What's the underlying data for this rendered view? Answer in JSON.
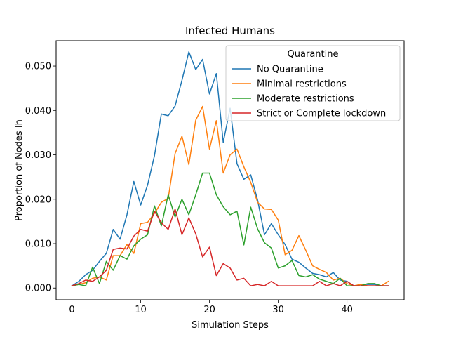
{
  "chart_data": {
    "type": "line",
    "title": "Infected Humans",
    "xlabel": "Simulation Steps",
    "ylabel": "Proportion of Nodes Ih",
    "xlim": [
      -2.3,
      48.3
    ],
    "ylim": [
      -0.00265,
      0.0557
    ],
    "xticks": [
      0,
      10,
      20,
      30,
      40
    ],
    "yticks": [
      0.0,
      0.01,
      0.02,
      0.03,
      0.04,
      0.05
    ],
    "ytick_labels": [
      "0.000",
      "0.010",
      "0.020",
      "0.030",
      "0.040",
      "0.050"
    ],
    "grid": false,
    "legend": {
      "title": "Quarantine",
      "placement": "top-right"
    },
    "x": [
      0,
      1,
      2,
      3,
      4,
      5,
      6,
      7,
      8,
      9,
      10,
      11,
      12,
      13,
      14,
      15,
      16,
      17,
      18,
      19,
      20,
      21,
      22,
      23,
      24,
      25,
      26,
      27,
      28,
      29,
      30,
      31,
      32,
      33,
      34,
      35,
      36,
      37,
      38,
      39,
      40,
      41,
      42,
      43,
      44,
      45,
      46
    ],
    "series": [
      {
        "name": "No Quarantine",
        "color": "#1f77b4",
        "values": [
          0.0005,
          0.0015,
          0.003,
          0.004,
          0.006,
          0.0078,
          0.0132,
          0.011,
          0.0165,
          0.024,
          0.0187,
          0.0232,
          0.0298,
          0.0392,
          0.0388,
          0.041,
          0.0468,
          0.0532,
          0.0492,
          0.0515,
          0.0437,
          0.0483,
          0.0328,
          0.0405,
          0.028,
          0.0245,
          0.0255,
          0.0198,
          0.012,
          0.0145,
          0.012,
          0.0098,
          0.0065,
          0.0058,
          0.0045,
          0.0033,
          0.003,
          0.0025,
          0.0035,
          0.0018,
          0.0015,
          0.0005,
          0.0008,
          0.0008,
          0.0008,
          0.0005,
          0.0005
        ]
      },
      {
        "name": "Minimal restrictions",
        "color": "#ff7f0e",
        "values": [
          0.0005,
          0.0008,
          0.0012,
          0.0022,
          0.0025,
          0.0018,
          0.0073,
          0.0073,
          0.0098,
          0.0078,
          0.0145,
          0.0148,
          0.0168,
          0.0193,
          0.0202,
          0.0303,
          0.0342,
          0.0278,
          0.0378,
          0.0409,
          0.0313,
          0.0377,
          0.0259,
          0.03,
          0.0313,
          0.0273,
          0.0238,
          0.0193,
          0.0178,
          0.0177,
          0.0153,
          0.0075,
          0.0085,
          0.0118,
          0.0085,
          0.005,
          0.0042,
          0.0035,
          0.0018,
          0.0022,
          0.001,
          0.0005,
          0.0008,
          0.0005,
          0.0005,
          0.0005,
          0.0015
        ]
      },
      {
        "name": "Moderate restrictions",
        "color": "#2ca02c",
        "values": [
          0.0005,
          0.0008,
          0.0005,
          0.0047,
          0.001,
          0.006,
          0.004,
          0.0073,
          0.0065,
          0.0095,
          0.011,
          0.012,
          0.0185,
          0.014,
          0.021,
          0.016,
          0.02,
          0.0165,
          0.021,
          0.0259,
          0.0259,
          0.021,
          0.0183,
          0.0165,
          0.0173,
          0.0097,
          0.0182,
          0.0133,
          0.0102,
          0.009,
          0.0045,
          0.005,
          0.0062,
          0.0028,
          0.0025,
          0.003,
          0.002,
          0.0015,
          0.001,
          0.0022,
          0.0005,
          0.0005,
          0.0005,
          0.001,
          0.001,
          0.0005,
          0.0005
        ]
      },
      {
        "name": "Strict or Complete lockdown",
        "color": "#d62728",
        "values": [
          0.0005,
          0.001,
          0.0018,
          0.0015,
          0.0025,
          0.004,
          0.0087,
          0.009,
          0.0088,
          0.0117,
          0.0132,
          0.0128,
          0.0173,
          0.0147,
          0.0132,
          0.0178,
          0.012,
          0.0158,
          0.0122,
          0.007,
          0.0092,
          0.0028,
          0.0055,
          0.0045,
          0.0018,
          0.0022,
          0.0005,
          0.0008,
          0.0005,
          0.0015,
          0.0005,
          0.0005,
          0.0005,
          0.0005,
          0.0005,
          0.0005,
          0.0015,
          0.0005,
          0.001,
          0.0005,
          0.0015,
          0.0005,
          0.0005,
          0.0005,
          0.0005,
          0.0005,
          0.0005
        ]
      }
    ]
  }
}
